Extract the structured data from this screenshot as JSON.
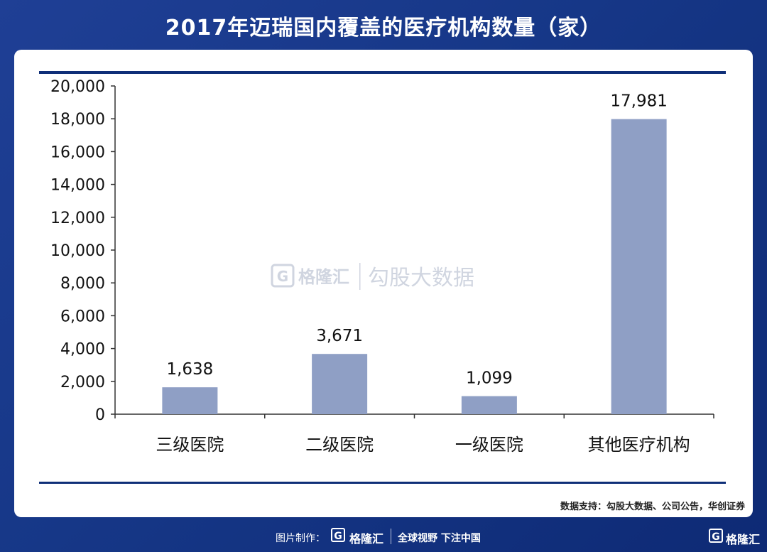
{
  "title": "2017年迈瑞国内覆盖的医疗机构数量（家）",
  "source": "数据支持：勾股大数据、公司公告，华创证券",
  "watermark": {
    "brand": "格隆汇",
    "tagline": "勾股大数据"
  },
  "footer": {
    "credit": "图片制作：",
    "brand": "格隆汇",
    "slogan": "全球视野 下注中国",
    "corner_brand": "格隆汇"
  },
  "colors": {
    "bar": "#8f9fc5",
    "rule": "#0f2f78",
    "background": "#1a3a8c"
  },
  "chart_data": {
    "type": "bar",
    "categories": [
      "三级医院",
      "二级医院",
      "一级医院",
      "其他医疗机构"
    ],
    "values": [
      1638,
      3671,
      1099,
      17981
    ],
    "value_labels": [
      "1,638",
      "3,671",
      "1,099",
      "17,981"
    ],
    "yticks": [
      "0",
      "2,000",
      "4,000",
      "6,000",
      "8,000",
      "10,000",
      "12,000",
      "14,000",
      "16,000",
      "18,000",
      "20,000"
    ],
    "ylim": [
      0,
      20000
    ],
    "grid": false,
    "legend": "none"
  }
}
